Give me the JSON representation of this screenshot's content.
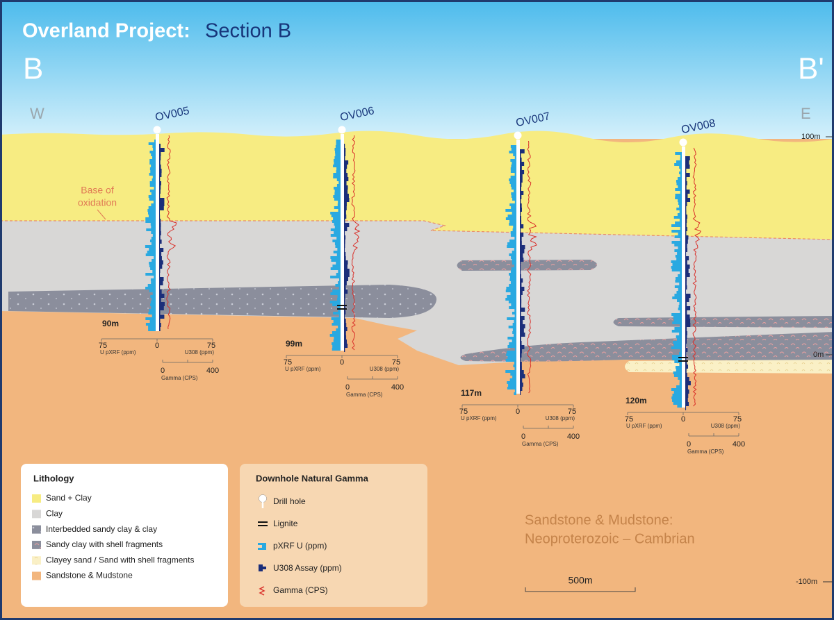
{
  "header": {
    "title": "Overland Project:",
    "subtitle": "Section B"
  },
  "section": {
    "start": "B",
    "end": "B'",
    "west": "W",
    "east": "E"
  },
  "elevations": [
    "100m",
    "0m",
    "-100m"
  ],
  "annotation": [
    "Base of",
    "oxidation"
  ],
  "holes": [
    {
      "name": "OV005",
      "depth": "90m",
      "pxrf_left": "75",
      "pxrf_zero": "0",
      "pxrf_right": "75",
      "pxrf_label": "U pXRF (ppm)",
      "assay_label": "U308 (ppm)",
      "gamma_zero": "0",
      "gamma_max": "400",
      "gamma_label": "Gamma (CPS)"
    },
    {
      "name": "OV006",
      "depth": "99m",
      "pxrf_left": "75",
      "pxrf_zero": "0",
      "pxrf_right": "75",
      "pxrf_label": "U pXRF (ppm)",
      "assay_label": "U308 (ppm)",
      "gamma_zero": "0",
      "gamma_max": "400",
      "gamma_label": "Gamma (CPS)"
    },
    {
      "name": "OV007",
      "depth": "117m",
      "pxrf_left": "75",
      "pxrf_zero": "0",
      "pxrf_right": "75",
      "pxrf_label": "U pXRF (ppm)",
      "assay_label": "U308 (ppm)",
      "gamma_zero": "0",
      "gamma_max": "400",
      "gamma_label": "Gamma (CPS)"
    },
    {
      "name": "OV008",
      "depth": "120m",
      "pxrf_left": "75",
      "pxrf_zero": "0",
      "pxrf_right": "75",
      "pxrf_label": "U pXRF (ppm)",
      "assay_label": "U308 (ppm)",
      "gamma_zero": "0",
      "gamma_max": "400",
      "gamma_label": "Gamma (CPS)"
    }
  ],
  "legend_lithology": {
    "title": "Lithology",
    "items": [
      "Sand + Clay",
      "Clay",
      "Interbedded sandy clay & clay",
      "Sandy clay with shell fragments",
      "Clayey sand / Sand with shell fragments",
      "Sandstone & Mudstone"
    ]
  },
  "legend_gamma": {
    "title": "Downhole Natural Gamma",
    "items": [
      "Drill hole",
      "Lignite",
      "pXRF U (ppm)",
      "U308 Assay (ppm)",
      "Gamma (CPS)"
    ]
  },
  "formation": [
    "Sandstone & Mudstone:",
    "Neoproterozoic – Cambrian"
  ],
  "scale_bar": "500m"
}
